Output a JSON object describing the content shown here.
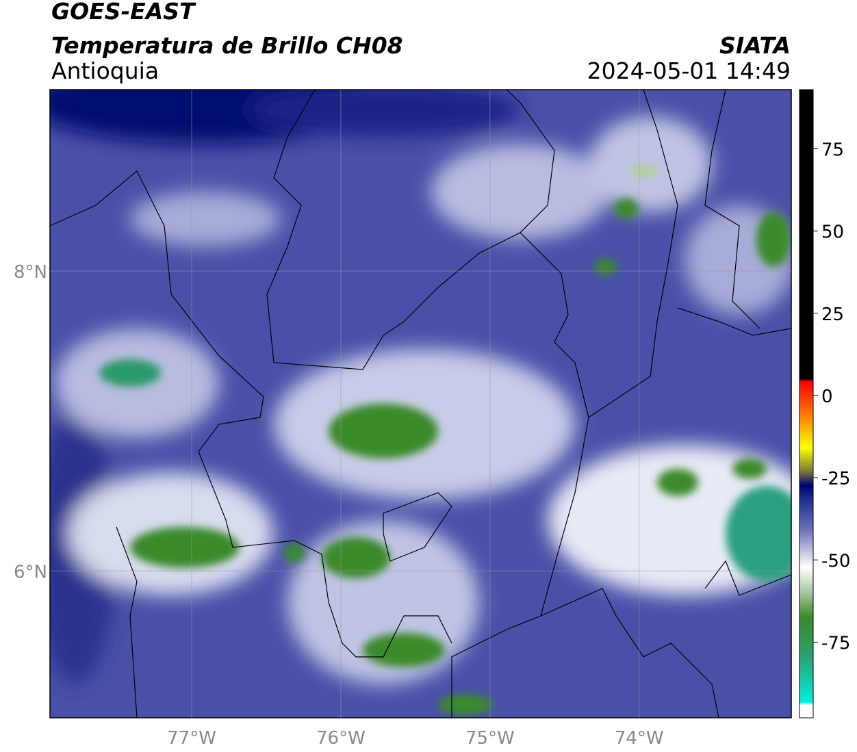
{
  "header": {
    "title": "GOES-EAST",
    "subtitle": "Temperatura de Brillo CH08",
    "region": "Antioquia",
    "source": "SIATA",
    "datetime": "2024-05-01 14:49"
  },
  "map": {
    "xlim": [
      -77.95,
      -72.98
    ],
    "ylim": [
      5.02,
      9.21
    ],
    "xticks": [
      {
        "value": -77,
        "label": "77°W"
      },
      {
        "value": -76,
        "label": "76°W"
      },
      {
        "value": -75,
        "label": "75°W"
      },
      {
        "value": -74,
        "label": "74°W"
      }
    ],
    "yticks": [
      {
        "value": 8,
        "label": "8°N"
      },
      {
        "value": 6,
        "label": "6°N"
      }
    ],
    "grid": true
  },
  "colorbar": {
    "lim": [
      -98,
      93
    ],
    "ticks": [
      75,
      50,
      25,
      0,
      -25,
      -50,
      -75
    ]
  }
}
